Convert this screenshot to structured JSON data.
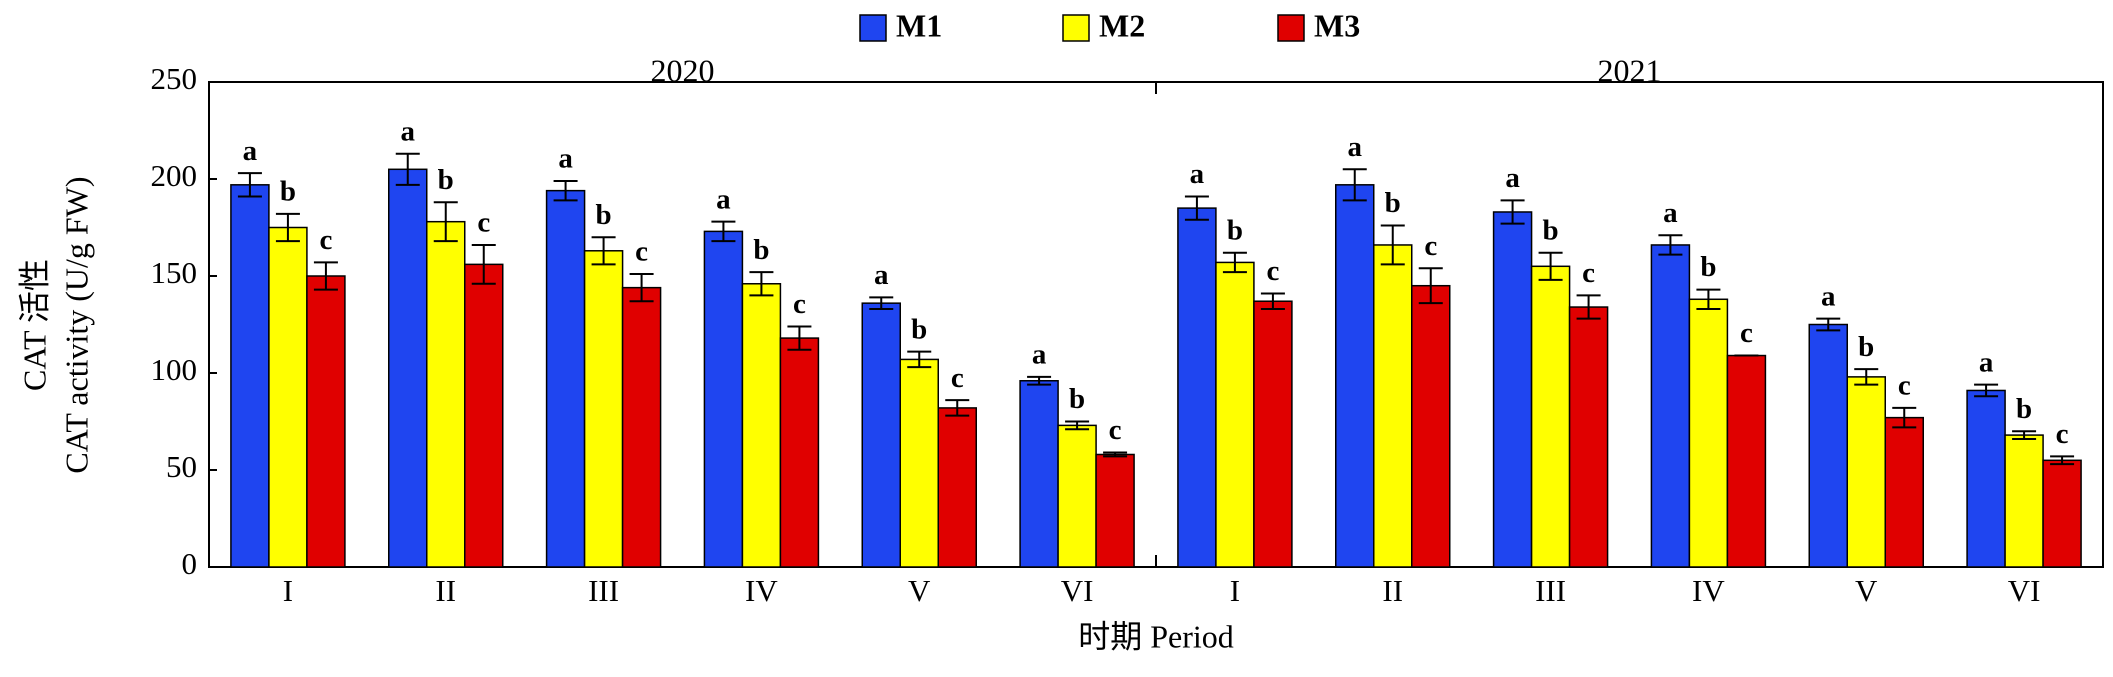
{
  "chart_data": {
    "type": "bar",
    "ylabel": [
      "CAT 活性",
      "CAT activity (U/g FW)"
    ],
    "xlabel": "时期 Period",
    "groups": [
      "2020",
      "2021"
    ],
    "categories": [
      "I",
      "II",
      "III",
      "IV",
      "V",
      "VI",
      "I",
      "II",
      "III",
      "IV",
      "V",
      "VI"
    ],
    "ylim": [
      0,
      250
    ],
    "yticks": [
      0,
      50,
      100,
      150,
      200,
      250
    ],
    "legend": "top",
    "series": [
      {
        "name": "M1",
        "color": "#1f45f0",
        "values": [
          197,
          205,
          194,
          173,
          136,
          96,
          185,
          197,
          183,
          166,
          125,
          91
        ],
        "errors": [
          6,
          8,
          5,
          5,
          3,
          2,
          6,
          8,
          6,
          5,
          3,
          3
        ],
        "labels": [
          "a",
          "a",
          "a",
          "a",
          "a",
          "a",
          "a",
          "a",
          "a",
          "a",
          "a",
          "a"
        ]
      },
      {
        "name": "M2",
        "color": "#ffff00",
        "values": [
          175,
          178,
          163,
          146,
          107,
          73,
          157,
          166,
          155,
          138,
          98,
          68
        ],
        "errors": [
          7,
          10,
          7,
          6,
          4,
          2,
          5,
          10,
          7,
          5,
          4,
          2
        ],
        "labels": [
          "b",
          "b",
          "b",
          "b",
          "b",
          "b",
          "b",
          "b",
          "b",
          "b",
          "b",
          "b"
        ]
      },
      {
        "name": "M3",
        "color": "#e00000",
        "values": [
          150,
          156,
          144,
          118,
          82,
          58,
          137,
          145,
          134,
          109,
          77,
          55
        ],
        "errors": [
          7,
          10,
          7,
          6,
          4,
          1,
          4,
          9,
          6,
          0,
          5,
          2
        ],
        "labels": [
          "c",
          "c",
          "c",
          "c",
          "c",
          "c",
          "c",
          "c",
          "c",
          "c",
          "c",
          "c"
        ]
      }
    ]
  }
}
